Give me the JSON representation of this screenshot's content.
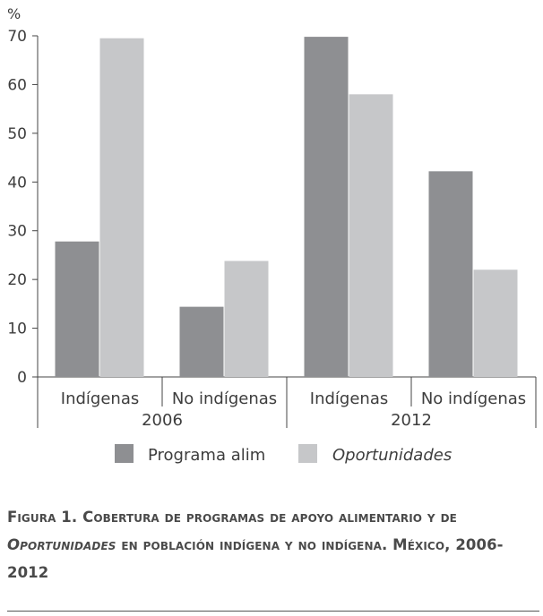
{
  "chart_data": {
    "type": "bar",
    "ylabel": "%",
    "ylim": [
      0,
      70
    ],
    "yticks": [
      0,
      10,
      20,
      30,
      40,
      50,
      60,
      70
    ],
    "groups": [
      {
        "year": "2006",
        "categories": [
          "Indígenas",
          "No indígenas"
        ]
      },
      {
        "year": "2012",
        "categories": [
          "Indígenas",
          "No indígenas"
        ]
      }
    ],
    "categories": [
      "Indígenas",
      "No indígenas",
      "Indígenas",
      "No indígenas"
    ],
    "series": [
      {
        "name": "Programa alim",
        "italic": false,
        "color": "#8e8f92",
        "values": [
          27.8,
          14.4,
          69.8,
          42.2
        ]
      },
      {
        "name": "Oportunidades",
        "italic": true,
        "color": "#c6c7c9",
        "values": [
          69.5,
          23.8,
          58.0,
          22.0
        ]
      }
    ]
  },
  "caption": {
    "label": "Figura 1. ",
    "text_a": "Cobertura de programas de apoyo alimentario y de ",
    "text_italic": "Oportunidades",
    "text_b": " en población indígena y no indígena. México, 2006-2012"
  }
}
